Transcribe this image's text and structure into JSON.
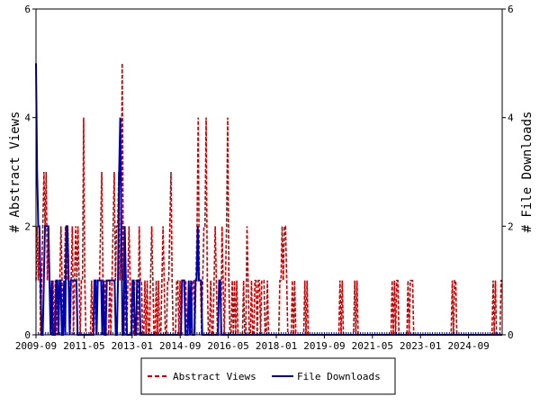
{
  "chart_data": {
    "type": "line",
    "title": "",
    "xlabel": "",
    "ylabel": "# Abstract Views",
    "y2label": "# File Downloads",
    "x_start": "2009-09",
    "x_end": "2025-11",
    "x_tick_labels": [
      "2009-09",
      "2011-05",
      "2013-01",
      "2014-09",
      "2016-05",
      "2018-01",
      "2019-09",
      "2021-05",
      "2023-01",
      "2024-09"
    ],
    "ylim": [
      0,
      6
    ],
    "y_ticks": [
      "0",
      "2",
      "4",
      "6"
    ],
    "y2lim": [
      0,
      6
    ],
    "y2_ticks": [
      "0",
      "2",
      "4",
      "6"
    ],
    "grid": false,
    "legend_position": "bottom",
    "series": [
      {
        "name": "Abstract Views",
        "color": "#cc0000",
        "style": "dashed",
        "values": [
          1,
          2,
          1,
          2,
          0,
          1,
          2,
          3,
          2,
          3,
          1,
          2,
          1,
          0,
          0,
          1,
          0,
          1,
          0,
          1,
          0,
          1,
          2,
          1,
          0,
          1,
          2,
          1,
          2,
          1,
          0,
          1,
          2,
          0,
          1,
          2,
          1,
          2,
          1,
          0,
          1,
          1,
          4,
          1,
          0,
          0,
          0,
          0,
          0,
          1,
          0,
          0,
          1,
          0,
          1,
          1,
          1,
          2,
          3,
          1,
          0,
          1,
          0,
          0,
          0,
          1,
          0,
          1,
          2,
          3,
          1,
          2,
          2,
          3,
          1,
          2,
          5,
          1,
          2,
          0,
          0,
          1,
          2,
          1,
          0,
          1,
          0,
          1,
          1,
          1,
          0,
          2,
          1,
          1,
          0,
          0,
          1,
          0,
          1,
          0,
          0,
          1,
          2,
          1,
          0,
          0,
          1,
          0,
          1,
          0,
          0,
          1,
          2,
          1,
          0,
          0,
          1,
          1,
          2,
          3,
          1,
          0,
          0,
          0,
          1,
          1,
          0,
          1,
          0,
          1,
          1,
          1,
          1,
          0,
          0,
          0,
          0,
          0,
          1,
          1,
          0,
          1,
          2,
          4,
          1,
          1,
          0,
          1,
          2,
          2,
          4,
          1,
          0,
          0,
          1,
          0,
          0,
          1,
          2,
          1,
          0,
          0,
          0,
          0,
          2,
          1,
          0,
          1,
          2,
          4,
          1,
          0,
          0,
          1,
          0,
          1,
          0,
          1,
          0,
          0,
          0,
          0,
          0,
          1,
          0,
          0,
          2,
          1,
          0,
          0,
          1,
          0,
          0,
          1,
          1,
          0,
          1,
          1,
          0,
          1,
          1,
          1,
          0,
          0,
          1,
          0,
          0,
          0,
          0,
          0,
          0,
          0,
          0,
          0,
          0,
          1,
          1,
          2,
          1,
          2,
          2,
          1,
          0,
          0,
          0,
          0,
          1,
          0,
          1,
          0,
          0,
          0,
          0,
          0,
          0,
          0,
          0,
          1,
          0,
          1,
          0,
          0,
          0,
          0,
          0,
          0,
          0,
          0,
          0,
          0,
          0,
          0,
          0,
          0,
          0,
          0,
          0,
          0,
          0,
          0,
          0,
          0,
          0,
          0,
          0,
          0,
          0,
          0,
          1,
          0,
          1,
          0,
          0,
          0,
          0,
          0,
          0,
          0,
          0,
          0,
          0,
          1,
          0,
          1,
          0,
          0,
          0,
          0,
          0,
          0,
          0,
          0,
          0,
          0,
          0,
          0,
          0,
          0,
          0,
          0,
          0,
          0,
          0,
          0,
          0,
          0,
          0,
          0,
          0,
          0,
          0,
          0,
          0,
          0,
          1,
          0,
          1,
          0,
          1,
          1,
          0,
          0,
          0,
          0,
          0,
          0,
          0,
          0,
          1,
          0,
          1,
          1,
          1,
          0,
          0,
          0,
          0,
          0,
          0,
          0,
          0,
          0,
          0,
          0,
          0,
          0,
          0,
          0,
          0,
          0,
          0,
          0,
          0,
          0,
          0,
          0,
          0,
          0,
          0,
          0,
          0,
          0,
          0,
          0,
          0,
          0,
          0,
          1,
          0,
          1,
          1,
          0,
          0,
          0,
          0,
          0,
          0,
          0,
          0,
          0,
          0,
          0,
          0,
          0,
          0,
          0,
          0,
          0,
          0,
          0,
          0,
          0,
          0,
          0,
          0,
          0,
          0,
          0,
          0,
          0,
          0,
          0,
          0,
          1,
          0,
          1,
          0,
          0,
          0,
          0,
          1,
          1
        ]
      },
      {
        "name": "File Downloads",
        "color": "#0000aa",
        "style": "solid",
        "values": [
          5,
          3,
          2,
          2,
          1,
          0,
          0,
          1,
          2,
          2,
          2,
          2,
          1,
          0,
          1,
          0,
          0,
          0,
          1,
          1,
          0,
          1,
          1,
          0,
          0,
          1,
          0,
          2,
          2,
          1,
          0,
          1,
          1,
          1,
          1,
          1,
          1,
          0,
          0,
          0,
          0,
          0,
          0,
          0,
          0,
          0,
          0,
          0,
          0,
          0,
          0,
          0,
          1,
          1,
          0,
          1,
          1,
          1,
          1,
          0,
          1,
          0,
          0,
          1,
          1,
          1,
          1,
          1,
          1,
          1,
          1,
          0,
          0,
          1,
          3,
          4,
          2,
          0,
          0,
          2,
          1,
          0,
          0,
          0,
          0,
          0,
          1,
          1,
          0,
          0,
          1,
          1,
          1,
          0,
          0,
          0,
          0,
          0,
          0,
          0,
          0,
          0,
          0,
          0,
          0,
          0,
          0,
          0,
          0,
          0,
          0,
          0,
          0,
          0,
          0,
          0,
          0,
          0,
          0,
          0,
          0,
          0,
          0,
          0,
          0,
          0,
          0,
          0,
          0,
          0,
          1,
          1,
          1,
          0,
          0,
          0,
          1,
          0,
          1,
          0,
          0,
          0,
          1,
          1,
          2,
          1,
          1,
          1,
          0,
          0,
          0,
          0,
          0,
          0,
          0,
          0,
          0,
          0,
          0,
          0,
          0,
          0,
          0,
          1,
          1,
          0,
          0,
          0,
          0,
          0,
          0,
          0,
          0,
          0,
          0,
          0,
          0,
          0,
          0,
          0,
          0,
          0,
          0,
          0,
          0,
          0,
          0,
          0,
          0,
          0,
          0,
          0,
          0,
          0,
          0,
          0,
          0,
          0,
          0,
          0,
          0,
          0,
          0,
          0,
          0,
          0,
          0,
          0,
          0,
          0,
          0,
          0,
          0,
          0,
          0,
          0,
          0,
          0,
          0,
          0,
          0,
          0,
          0,
          0,
          0,
          0,
          0,
          0,
          0,
          0,
          0,
          0,
          0,
          0,
          0,
          0,
          0,
          0,
          0,
          0,
          0,
          0,
          0,
          0,
          0,
          0,
          0,
          0,
          0,
          0,
          0,
          0,
          0,
          0,
          0,
          0,
          0,
          0,
          0,
          0,
          0,
          0,
          0,
          0,
          0,
          0,
          0,
          0,
          0,
          0,
          0,
          0,
          0,
          0,
          0,
          0,
          0,
          0,
          0,
          0,
          0,
          0,
          0,
          0,
          0,
          0,
          0,
          0,
          0,
          0,
          0,
          0,
          0,
          0,
          0,
          0,
          0,
          0,
          0,
          0,
          0,
          0,
          0,
          0,
          0,
          0,
          0,
          0,
          0,
          0,
          0,
          0,
          0,
          0,
          0,
          0,
          0,
          0,
          0,
          0,
          0,
          0,
          0,
          0,
          0,
          0,
          0,
          0,
          0,
          0,
          0,
          0,
          0,
          0,
          0,
          0,
          0,
          0,
          0,
          0,
          0,
          0,
          0,
          0,
          0,
          0,
          0,
          0,
          0,
          0,
          0,
          0,
          0,
          0,
          0,
          0,
          0,
          0,
          0,
          0,
          0,
          0,
          0,
          0,
          0,
          0,
          0,
          0,
          0,
          0,
          0,
          0,
          0,
          0,
          0,
          0,
          0,
          0,
          0,
          0,
          0,
          0,
          0,
          0,
          0,
          0,
          0,
          0,
          0,
          0,
          0,
          0,
          0,
          0,
          0,
          0,
          0,
          0,
          0,
          0,
          0,
          0,
          0,
          0,
          0,
          0,
          0,
          0,
          0,
          0,
          0,
          0,
          0,
          0,
          0,
          0
        ]
      }
    ]
  }
}
